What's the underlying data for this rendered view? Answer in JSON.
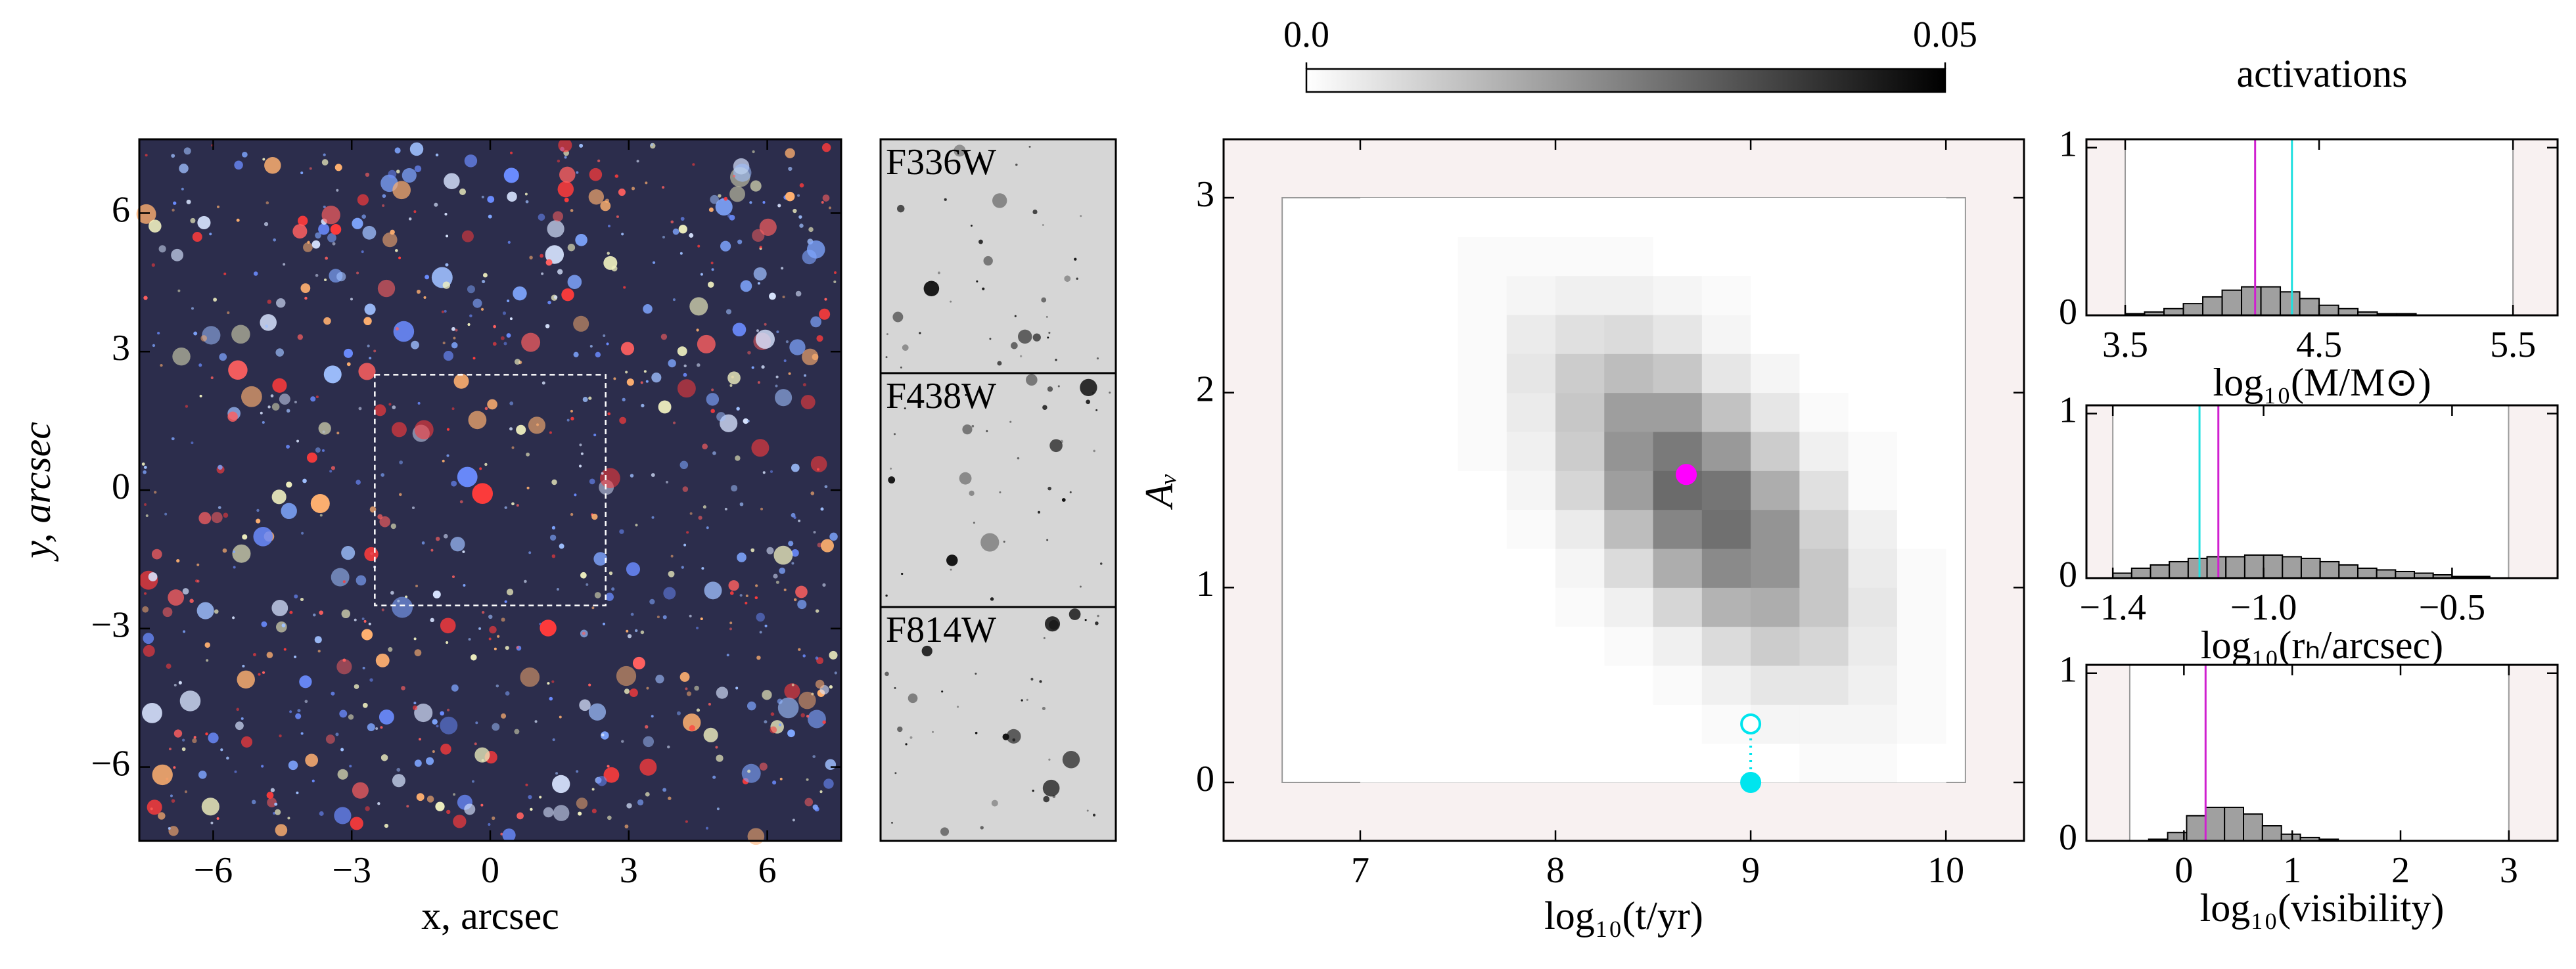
{
  "chart_data": [
    {
      "type": "image",
      "xlabel": "x, arcsec",
      "ylabel": "y, arcsec",
      "xlim": [
        -7.6,
        7.6
      ],
      "ylim": [
        -7.6,
        7.6
      ],
      "xticks": [
        {
          "value": -6,
          "label": "−6"
        },
        {
          "value": -3,
          "label": "−3"
        },
        0,
        3,
        6
      ],
      "yticks": [
        {
          "value": -6,
          "label": "−6"
        },
        {
          "value": -3,
          "label": "−3"
        },
        0,
        3,
        6
      ],
      "box": {
        "x": [
          -2.5,
          2.5
        ],
        "y": [
          -2.5,
          2.5
        ]
      }
    },
    {
      "type": "cutouts",
      "panels": [
        {
          "label": "F336W",
          "color": "#1c1cd8"
        },
        {
          "label": "F438W",
          "color": "#1a7a1a"
        },
        {
          "label": "F814W",
          "color": "#e0141e"
        }
      ]
    },
    {
      "type": "heatmap",
      "xlabel": "log₁₀(t/yr)",
      "ylabel": "Aᵥ",
      "xlim": [
        6.3,
        10.4
      ],
      "ylim": [
        -0.3,
        3.3
      ],
      "xticks": [
        7,
        8,
        9,
        10
      ],
      "yticks": [
        0,
        1,
        2,
        3
      ],
      "x_bins": [
        7,
        7.25,
        7.5,
        7.75,
        8,
        8.25,
        8.5,
        8.75,
        9,
        9.25,
        9.5,
        9.75,
        10
      ],
      "y_bins": [
        0,
        0.2,
        0.4,
        0.6,
        0.8,
        1,
        1.2,
        1.4,
        1.6,
        1.8,
        2,
        2.2,
        2.4,
        2.6,
        2.8,
        3
      ],
      "z": [
        [
          0,
          0,
          0,
          0,
          0,
          0,
          0,
          0,
          0,
          0.001,
          0.001,
          0
        ],
        [
          0,
          0,
          0,
          0,
          0,
          0,
          0,
          0.001,
          0.002,
          0.002,
          0.002,
          0.001
        ],
        [
          0,
          0,
          0,
          0,
          0,
          0,
          0.001,
          0.003,
          0.005,
          0.005,
          0.003,
          0.001
        ],
        [
          0,
          0,
          0,
          0,
          0,
          0.001,
          0.003,
          0.007,
          0.01,
          0.008,
          0.004,
          0.001
        ],
        [
          0,
          0,
          0,
          0,
          0.001,
          0.003,
          0.008,
          0.015,
          0.016,
          0.011,
          0.005,
          0.001
        ],
        [
          0,
          0,
          0,
          0,
          0.002,
          0.007,
          0.016,
          0.023,
          0.021,
          0.011,
          0.004,
          0.001
        ],
        [
          0,
          0,
          0,
          0.001,
          0.004,
          0.013,
          0.024,
          0.028,
          0.021,
          0.009,
          0.003,
          0
        ],
        [
          0,
          0,
          0,
          0.002,
          0.008,
          0.019,
          0.029,
          0.027,
          0.016,
          0.006,
          0.001,
          0
        ],
        [
          0,
          0,
          0.001,
          0.003,
          0.01,
          0.021,
          0.026,
          0.02,
          0.01,
          0.003,
          0.001,
          0
        ],
        [
          0,
          0,
          0.001,
          0.004,
          0.011,
          0.019,
          0.019,
          0.012,
          0.005,
          0.001,
          0,
          0
        ],
        [
          0,
          0,
          0.001,
          0.005,
          0.01,
          0.013,
          0.011,
          0.005,
          0.002,
          0,
          0,
          0
        ],
        [
          0,
          0,
          0.001,
          0.004,
          0.006,
          0.007,
          0.005,
          0.002,
          0,
          0,
          0,
          0
        ],
        [
          0,
          0,
          0.001,
          0.002,
          0.003,
          0.003,
          0.002,
          0.001,
          0,
          0,
          0,
          0
        ],
        [
          0,
          0,
          0.001,
          0.001,
          0.001,
          0.001,
          0,
          0,
          0,
          0,
          0,
          0
        ],
        [
          0,
          0,
          0,
          0,
          0,
          0,
          0,
          0,
          0,
          0,
          0,
          0
        ]
      ],
      "colorbar": {
        "lim": [
          0,
          0.05
        ],
        "ticks": [
          {
            "value": 0,
            "label": "0.0"
          },
          0.05
        ]
      },
      "prior_box": {
        "x": [
          6.6,
          10.1
        ],
        "y": [
          0,
          3
        ]
      },
      "points": [
        {
          "x": 8.67,
          "y": 1.58,
          "color": "#ff00ff",
          "filled": true
        },
        {
          "x": 9.0,
          "y": 0.3,
          "color": "#00e5ee",
          "filled": false
        },
        {
          "x": 9.0,
          "y": 0.0,
          "color": "#00e5ee",
          "filled": true
        }
      ]
    },
    {
      "type": "histogram",
      "title": "activations",
      "xlabel": "log₁₀(M/M⊙)",
      "xlim": [
        3.3,
        5.73
      ],
      "ylim": [
        0,
        1.05
      ],
      "xticks": [
        3.5,
        4.5,
        5.5
      ],
      "yticks": [
        0,
        1
      ],
      "bins": [
        3.5,
        3.6,
        3.7,
        3.8,
        3.9,
        4.0,
        4.1,
        4.2,
        4.3,
        4.4,
        4.5,
        4.6,
        4.7,
        4.8,
        4.9,
        5.0,
        5.1,
        5.2,
        5.3,
        5.4,
        5.5
      ],
      "counts": [
        0.01,
        0.02,
        0.04,
        0.07,
        0.11,
        0.15,
        0.17,
        0.17,
        0.14,
        0.1,
        0.06,
        0.04,
        0.02,
        0.01,
        0.01,
        0,
        0,
        0,
        0,
        0
      ],
      "bounds": [
        3.5,
        5.5
      ],
      "lines": [
        {
          "x": 4.17,
          "color": "#d020d0"
        },
        {
          "x": 4.36,
          "color": "#20e0e0"
        }
      ]
    },
    {
      "type": "histogram",
      "xlabel": "log₁₀(rₕ/arcsec)",
      "xlim": [
        -1.47,
        -0.22
      ],
      "ylim": [
        0,
        1.05
      ],
      "xticks": [
        {
          "value": -1.4,
          "label": "−1.4"
        },
        {
          "value": -1.0,
          "label": "−1.0"
        },
        {
          "value": -0.5,
          "label": "−0.5"
        }
      ],
      "yticks": [
        0,
        1
      ],
      "bins": [
        -1.4,
        -1.35,
        -1.3,
        -1.25,
        -1.2,
        -1.15,
        -1.1,
        -1.05,
        -1.0,
        -0.95,
        -0.9,
        -0.85,
        -0.8,
        -0.75,
        -0.7,
        -0.65,
        -0.6,
        -0.55,
        -0.5,
        -0.45,
        -0.4
      ],
      "counts": [
        0.03,
        0.06,
        0.08,
        0.1,
        0.12,
        0.13,
        0.13,
        0.14,
        0.14,
        0.13,
        0.12,
        0.1,
        0.08,
        0.06,
        0.05,
        0.04,
        0.03,
        0.02,
        0.01,
        0.01
      ],
      "bounds": [
        -1.4,
        -0.35
      ],
      "lines": [
        {
          "x": -1.17,
          "color": "#20e0e0"
        },
        {
          "x": -1.12,
          "color": "#d020d0"
        }
      ]
    },
    {
      "type": "histogram",
      "xlabel": "log₁₀(visibility)",
      "xlim": [
        -0.9,
        3.45
      ],
      "ylim": [
        0,
        1.05
      ],
      "xticks": [
        0,
        1,
        2,
        3
      ],
      "yticks": [
        0,
        1
      ],
      "bins": [
        -0.5,
        -0.325,
        -0.15,
        0.025,
        0.2,
        0.375,
        0.55,
        0.725,
        0.9,
        1.075,
        1.25,
        1.425,
        1.6,
        1.775,
        1.95,
        2.125,
        2.3,
        2.475,
        2.65,
        2.825,
        3.0
      ],
      "counts": [
        0,
        0.01,
        0.05,
        0.15,
        0.2,
        0.2,
        0.16,
        0.09,
        0.04,
        0.02,
        0.01,
        0,
        0,
        0,
        0,
        0,
        0,
        0,
        0,
        0
      ],
      "bounds": [
        -0.5,
        3.0
      ],
      "lines": [
        {
          "x": 0.2,
          "color": "#d020d0"
        }
      ]
    }
  ]
}
